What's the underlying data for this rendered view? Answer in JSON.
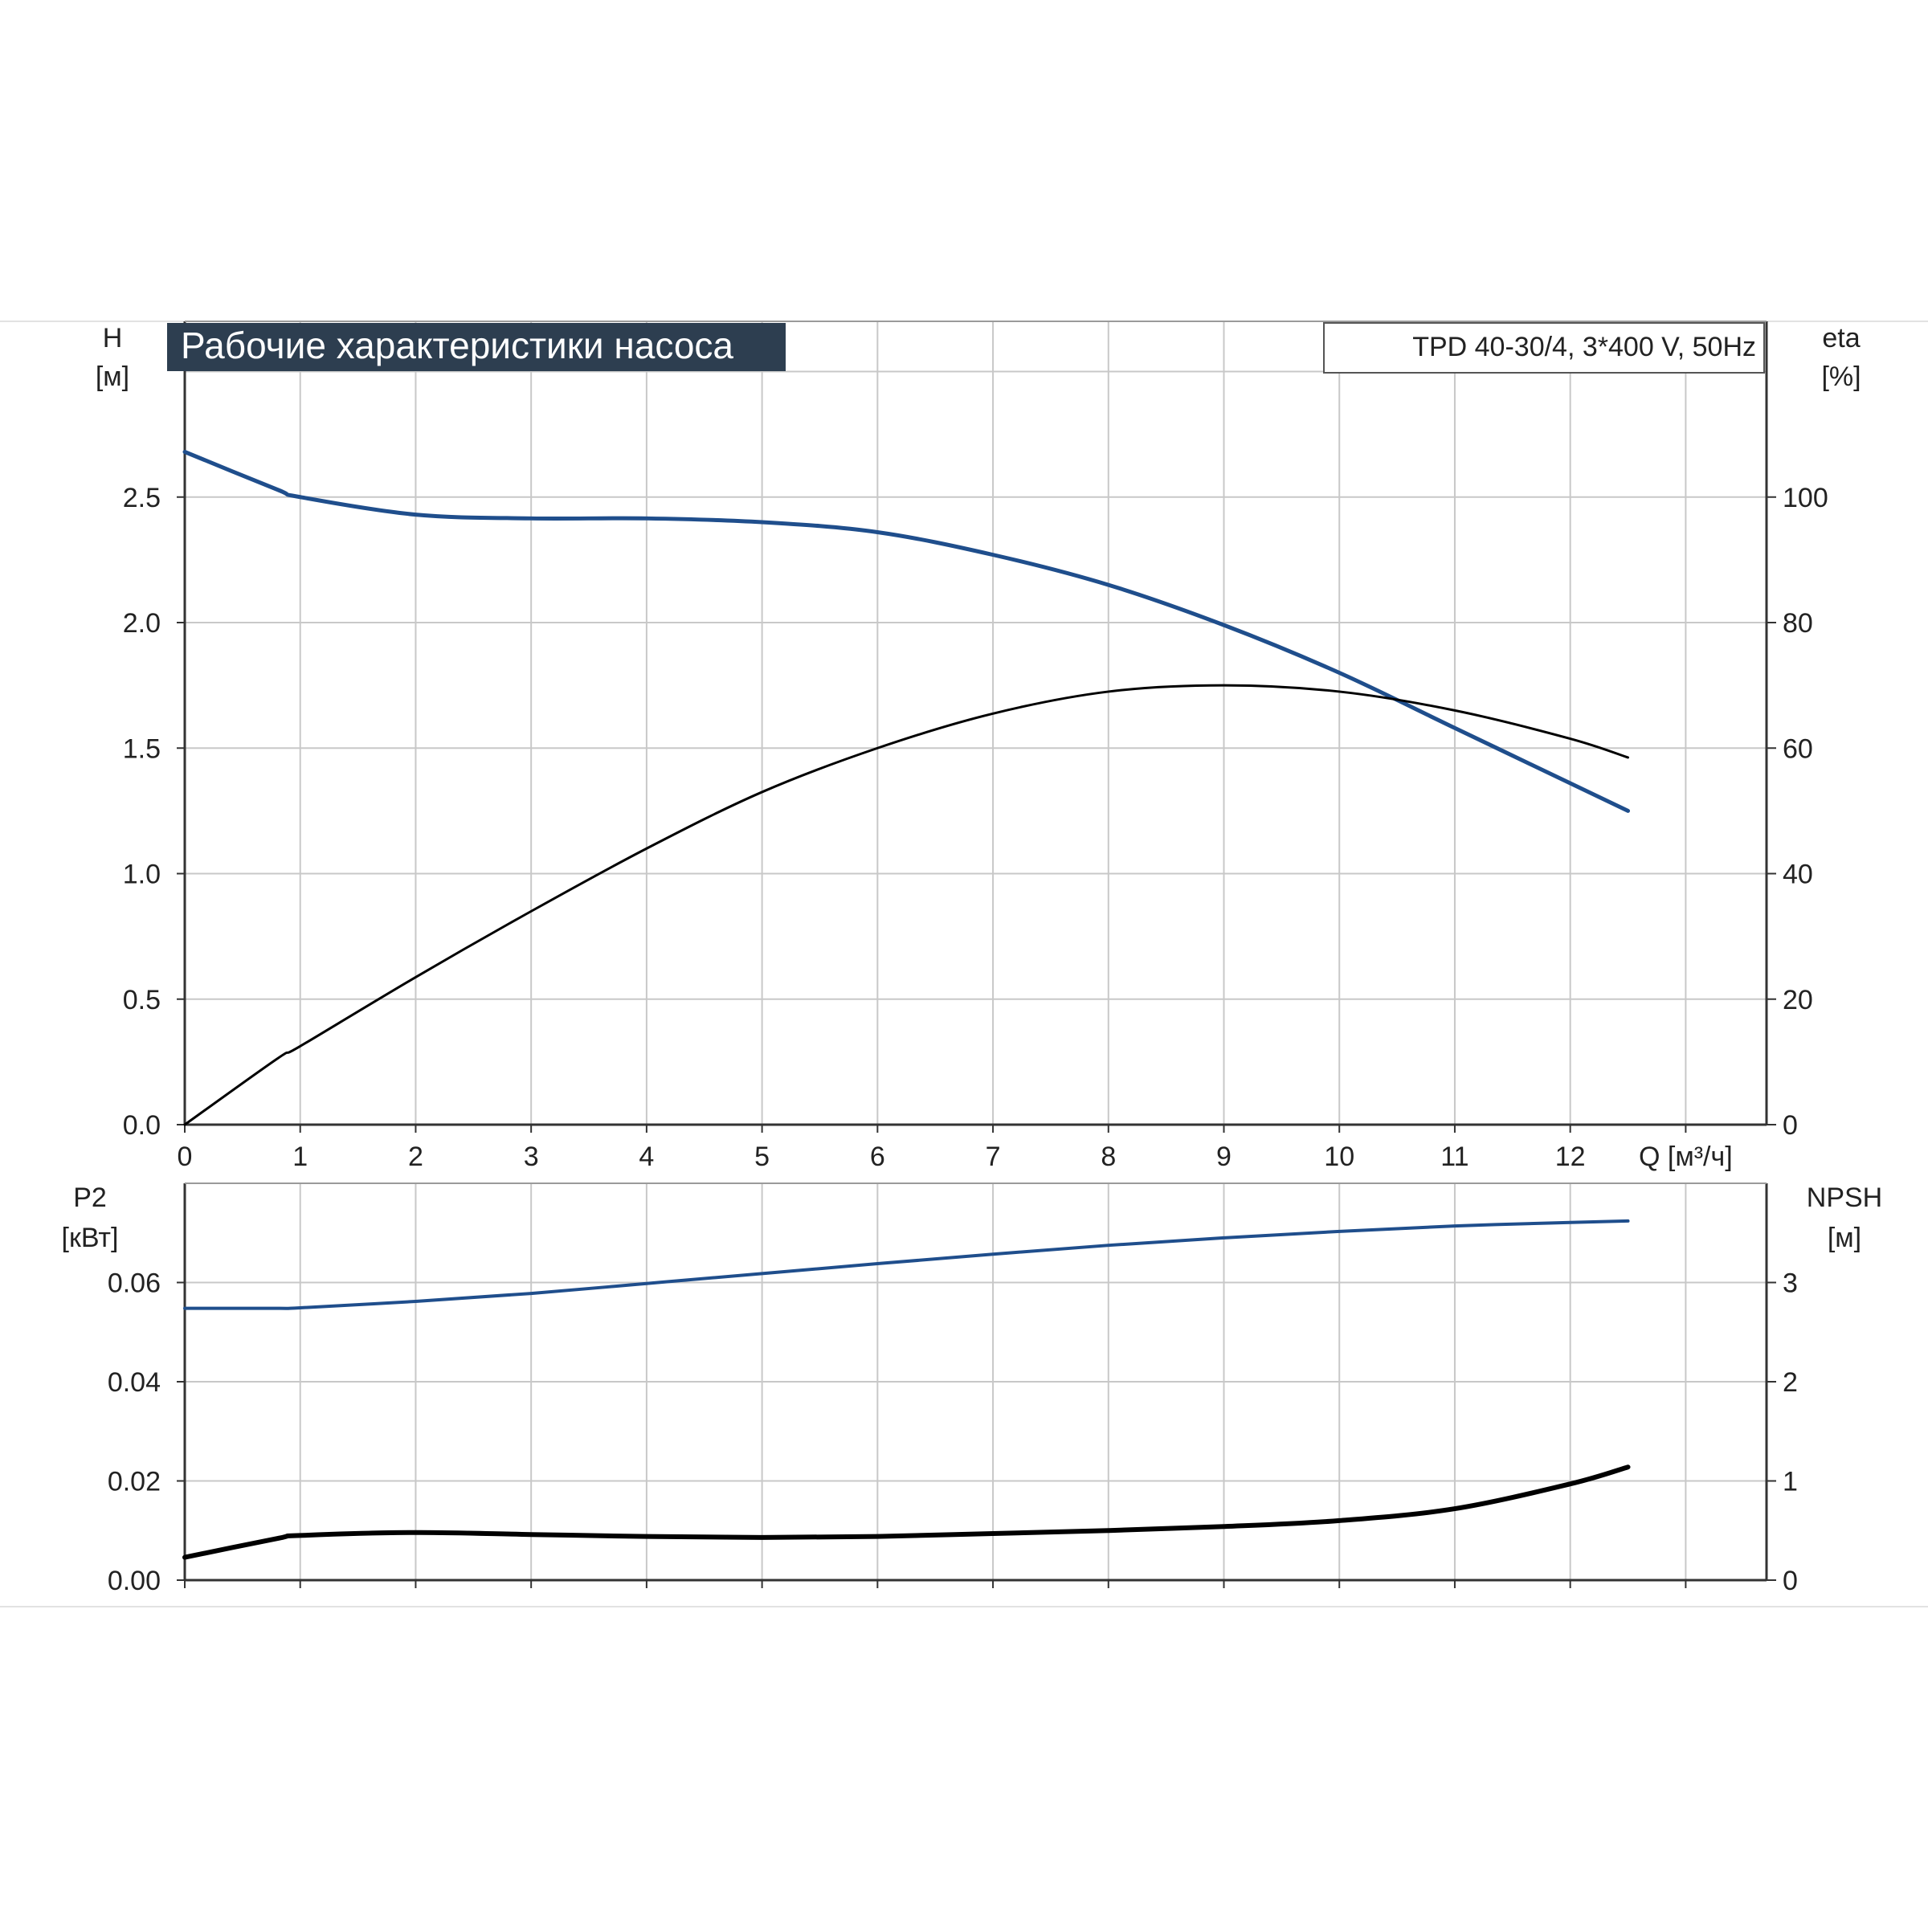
{
  "chart_data": [
    {
      "type": "line",
      "title": "Рабочие характеристики насоса",
      "subtitle": "TPD 40-30/4, 3*400 V, 50Hz",
      "xlabel": "Q [м³/ч]",
      "x_ticks": [
        "0",
        "1",
        "2",
        "3",
        "4",
        "5",
        "6",
        "7",
        "8",
        "9",
        "10",
        "11",
        "12"
      ],
      "xlim": [
        0,
        13.7
      ],
      "y_left": {
        "label_line1": "H",
        "label_line2": "[м]",
        "ylim": [
          0,
          3.2
        ],
        "ticks": [
          "0.0",
          "0.5",
          "1.0",
          "1.5",
          "2.0",
          "2.5"
        ]
      },
      "y_right": {
        "label_line1": "eta",
        "label_line2": "[%]",
        "ylim": [
          0,
          128
        ],
        "ticks": [
          "0",
          "20",
          "40",
          "60",
          "80",
          "100"
        ]
      },
      "grid": true,
      "series": [
        {
          "axis": "left",
          "color": "#1f4e8c",
          "x": [
            0,
            0.8,
            1,
            2,
            3,
            4,
            5,
            6,
            7,
            8,
            9,
            10,
            11,
            12,
            12.5
          ],
          "y": [
            2.68,
            2.53,
            2.5,
            2.43,
            2.415,
            2.415,
            2.4,
            2.36,
            2.27,
            2.15,
            1.99,
            1.8,
            1.58,
            1.36,
            1.25
          ]
        },
        {
          "axis": "right",
          "color": "#000000",
          "x": [
            0,
            0.8,
            1,
            2,
            3,
            4,
            5,
            6,
            7,
            8,
            9,
            10,
            11,
            12,
            12.5
          ],
          "y": [
            0,
            10.5,
            12.5,
            23.5,
            34,
            44,
            53,
            60,
            65.5,
            69,
            70,
            69,
            66,
            61.5,
            58.5
          ]
        }
      ]
    },
    {
      "type": "line",
      "xlim": [
        0,
        13.7
      ],
      "y_left": {
        "label_line1": "P2",
        "label_line2": "[кВт]",
        "ylim": [
          0,
          0.08
        ],
        "ticks": [
          "0.00",
          "0.02",
          "0.04",
          "0.06"
        ]
      },
      "y_right": {
        "label_line1": "NPSH",
        "label_line2": "[м]",
        "ylim": [
          0,
          4
        ],
        "ticks": [
          "0",
          "1",
          "2",
          "3"
        ]
      },
      "grid": true,
      "series": [
        {
          "axis": "left",
          "color": "#1f4e8c",
          "x": [
            0,
            0.8,
            1,
            2,
            3,
            4,
            5,
            6,
            7,
            8,
            9,
            10,
            11,
            12,
            12.5
          ],
          "y": [
            0.0548,
            0.0548,
            0.0549,
            0.0562,
            0.0578,
            0.0598,
            0.0618,
            0.0638,
            0.0657,
            0.0675,
            0.069,
            0.0703,
            0.0714,
            0.0721,
            0.0724
          ]
        },
        {
          "axis": "right",
          "color": "#000000",
          "x": [
            0,
            0.8,
            1,
            2,
            3,
            4,
            5,
            6,
            7,
            8,
            9,
            10,
            11,
            12,
            12.5
          ],
          "y": [
            0.23,
            0.42,
            0.45,
            0.48,
            0.46,
            0.44,
            0.43,
            0.44,
            0.47,
            0.5,
            0.54,
            0.6,
            0.72,
            0.97,
            1.14
          ]
        }
      ]
    }
  ]
}
